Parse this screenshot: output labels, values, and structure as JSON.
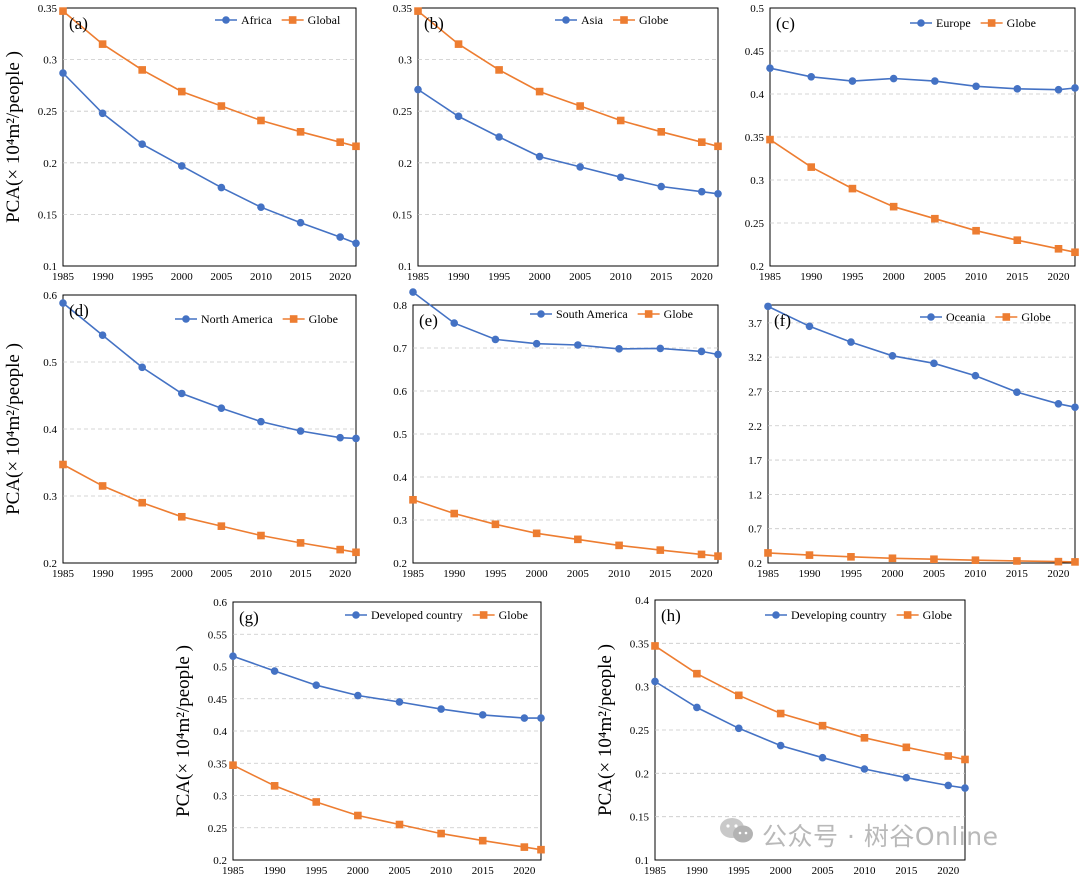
{
  "colors": {
    "region": "#4472C4",
    "global": "#ED7D31"
  },
  "y_axis_label": "PCA(× 10⁴m²/people )",
  "watermark": "公众号 · 树谷Online",
  "watermark_icon": "wechat-icon",
  "chart_data": [
    {
      "id": "a",
      "panel_label": "(a)",
      "type": "line",
      "x": [
        1985,
        1990,
        1995,
        2000,
        2005,
        2010,
        2015,
        2020,
        2022
      ],
      "xticks": [
        1985,
        1990,
        1995,
        2000,
        2005,
        2010,
        2015,
        2020
      ],
      "ylim": [
        0.1,
        0.35
      ],
      "yticks": [
        "0.1",
        "0.15",
        "0.2",
        "0.25",
        "0.3",
        "0.35"
      ],
      "grid": true,
      "legend": "top-right",
      "show_ylabel": true,
      "series": [
        {
          "name": "Africa",
          "values": [
            0.287,
            0.248,
            0.218,
            0.197,
            0.176,
            0.157,
            0.142,
            0.128,
            0.122
          ]
        },
        {
          "name": "Global",
          "values": [
            0.347,
            0.315,
            0.29,
            0.269,
            0.255,
            0.241,
            0.23,
            0.22,
            0.216
          ]
        }
      ]
    },
    {
      "id": "b",
      "panel_label": "(b)",
      "type": "line",
      "x": [
        1985,
        1990,
        1995,
        2000,
        2005,
        2010,
        2015,
        2020,
        2022
      ],
      "xticks": [
        1985,
        1990,
        1995,
        2000,
        2005,
        2010,
        2015,
        2020
      ],
      "ylim": [
        0.1,
        0.35
      ],
      "yticks": [
        "0.1",
        "0.15",
        "0.2",
        "0.25",
        "0.3",
        "0.35"
      ],
      "grid": true,
      "legend": "top-right",
      "show_ylabel": false,
      "series": [
        {
          "name": "Asia",
          "values": [
            0.271,
            0.245,
            0.225,
            0.206,
            0.196,
            0.186,
            0.177,
            0.172,
            0.17
          ]
        },
        {
          "name": "Globe",
          "values": [
            0.347,
            0.315,
            0.29,
            0.269,
            0.255,
            0.241,
            0.23,
            0.22,
            0.216
          ]
        }
      ]
    },
    {
      "id": "c",
      "panel_label": "(c)",
      "type": "line",
      "x": [
        1985,
        1990,
        1995,
        2000,
        2005,
        2010,
        2015,
        2020,
        2022
      ],
      "xticks": [
        1985,
        1990,
        1995,
        2000,
        2005,
        2010,
        2015,
        2020
      ],
      "ylim": [
        0.2,
        0.5
      ],
      "yticks": [
        "0.2",
        "0.25",
        "0.3",
        "0.35",
        "0.4",
        "0.45",
        "0.5"
      ],
      "grid": true,
      "legend": "top-right",
      "show_ylabel": false,
      "series": [
        {
          "name": "Europe",
          "values": [
            0.43,
            0.42,
            0.415,
            0.418,
            0.415,
            0.409,
            0.406,
            0.405,
            0.407
          ]
        },
        {
          "name": "Globe",
          "values": [
            0.347,
            0.315,
            0.29,
            0.269,
            0.255,
            0.241,
            0.23,
            0.22,
            0.216
          ]
        }
      ]
    },
    {
      "id": "d",
      "panel_label": "(d)",
      "type": "line",
      "x": [
        1985,
        1990,
        1995,
        2000,
        2005,
        2010,
        2015,
        2020,
        2022
      ],
      "xticks": [
        1985,
        1990,
        1995,
        2000,
        2005,
        2010,
        2015,
        2020
      ],
      "ylim": [
        0.2,
        0.6
      ],
      "yticks": [
        "0.2",
        "0.3",
        "0.4",
        "0.5",
        "0.6"
      ],
      "grid": true,
      "legend": "top-right",
      "show_ylabel": true,
      "series": [
        {
          "name": "North America",
          "values": [
            0.588,
            0.54,
            0.492,
            0.453,
            0.431,
            0.411,
            0.397,
            0.387,
            0.386
          ]
        },
        {
          "name": "Globe",
          "values": [
            0.347,
            0.315,
            0.29,
            0.269,
            0.255,
            0.241,
            0.23,
            0.22,
            0.216
          ]
        }
      ]
    },
    {
      "id": "e",
      "panel_label": "(e)",
      "type": "line",
      "x": [
        1985,
        1990,
        1995,
        2000,
        2005,
        2010,
        2015,
        2020,
        2022
      ],
      "xticks": [
        1985,
        1990,
        1995,
        2000,
        2005,
        2010,
        2015,
        2020
      ],
      "ylim": [
        0.2,
        0.8
      ],
      "yticks": [
        "0.2",
        "0.3",
        "0.4",
        "0.5",
        "0.6",
        "0.7",
        "0.8"
      ],
      "grid": true,
      "legend": "top-right",
      "show_ylabel": false,
      "series": [
        {
          "name": "South America",
          "values": [
            0.83,
            0.758,
            0.72,
            0.71,
            0.707,
            0.698,
            0.699,
            0.692,
            0.685
          ]
        },
        {
          "name": "Globe",
          "values": [
            0.347,
            0.315,
            0.29,
            0.269,
            0.255,
            0.241,
            0.23,
            0.22,
            0.216
          ]
        }
      ]
    },
    {
      "id": "f",
      "panel_label": "(f)",
      "type": "line",
      "x": [
        1985,
        1990,
        1995,
        2000,
        2005,
        2010,
        2015,
        2020,
        2022
      ],
      "xticks": [
        1985,
        1990,
        1995,
        2000,
        2005,
        2010,
        2015,
        2020
      ],
      "ylim": [
        0.2,
        3.96
      ],
      "yticks": [
        "0.2",
        "0.7",
        "1.2",
        "1.7",
        "2.2",
        "2.7",
        "3.2",
        "3.7"
      ],
      "grid": true,
      "legend": "top-right",
      "show_ylabel": false,
      "series": [
        {
          "name": "Oceania",
          "values": [
            3.94,
            3.65,
            3.42,
            3.22,
            3.11,
            2.93,
            2.69,
            2.52,
            2.47
          ]
        },
        {
          "name": "Globe",
          "values": [
            0.347,
            0.315,
            0.29,
            0.269,
            0.255,
            0.241,
            0.23,
            0.22,
            0.216
          ]
        }
      ]
    },
    {
      "id": "g",
      "panel_label": "(g)",
      "type": "line",
      "x": [
        1985,
        1990,
        1995,
        2000,
        2005,
        2010,
        2015,
        2020,
        2022
      ],
      "xticks": [
        1985,
        1990,
        1995,
        2000,
        2005,
        2010,
        2015,
        2020
      ],
      "ylim": [
        0.2,
        0.6
      ],
      "yticks": [
        "0.2",
        "0.25",
        "0.3",
        "0.35",
        "0.4",
        "0.45",
        "0.5",
        "0.55",
        "0.6"
      ],
      "grid": true,
      "legend": "top-right",
      "show_ylabel": true,
      "series": [
        {
          "name": "Developed country",
          "values": [
            0.516,
            0.493,
            0.471,
            0.455,
            0.445,
            0.434,
            0.425,
            0.42,
            0.42
          ]
        },
        {
          "name": "Globe",
          "values": [
            0.347,
            0.315,
            0.29,
            0.269,
            0.255,
            0.241,
            0.23,
            0.22,
            0.216
          ]
        }
      ]
    },
    {
      "id": "h",
      "panel_label": "(h)",
      "type": "line",
      "x": [
        1985,
        1990,
        1995,
        2000,
        2005,
        2010,
        2015,
        2020,
        2022
      ],
      "xticks": [
        1985,
        1990,
        1995,
        2000,
        2005,
        2010,
        2015,
        2020
      ],
      "ylim": [
        0.1,
        0.4
      ],
      "yticks": [
        "0.1",
        "0.15",
        "0.2",
        "0.25",
        "0.3",
        "0.35",
        "0.4"
      ],
      "grid": true,
      "legend": "top-right",
      "show_ylabel": true,
      "series": [
        {
          "name": "Developing country",
          "values": [
            0.306,
            0.276,
            0.252,
            0.232,
            0.218,
            0.205,
            0.195,
            0.186,
            0.183
          ]
        },
        {
          "name": "Globe",
          "values": [
            0.347,
            0.315,
            0.29,
            0.269,
            0.255,
            0.241,
            0.23,
            0.22,
            0.216
          ]
        }
      ]
    }
  ]
}
